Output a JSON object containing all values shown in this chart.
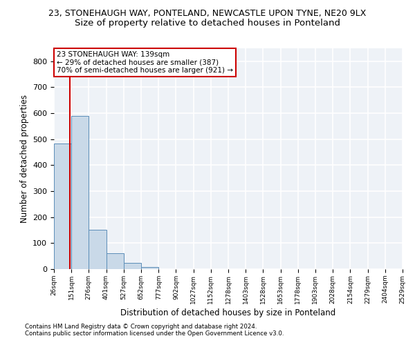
{
  "title1": "23, STONEHAUGH WAY, PONTELAND, NEWCASTLE UPON TYNE, NE20 9LX",
  "title2": "Size of property relative to detached houses in Ponteland",
  "xlabel": "Distribution of detached houses by size in Ponteland",
  "ylabel": "Number of detached properties",
  "bar_edges": [
    26,
    151,
    276,
    401,
    527,
    652,
    777,
    902,
    1027,
    1152,
    1278,
    1403,
    1528,
    1653,
    1778,
    1903,
    2028,
    2154,
    2279,
    2404,
    2529
  ],
  "bar_heights": [
    484,
    590,
    152,
    62,
    25,
    7,
    0,
    0,
    0,
    0,
    0,
    0,
    0,
    0,
    0,
    0,
    0,
    0,
    0,
    0
  ],
  "bar_color": "#c9d9e8",
  "bar_edge_color": "#5b8db8",
  "property_size": 139,
  "property_line_color": "#cc0000",
  "annotation_text": "23 STONEHAUGH WAY: 139sqm\n← 29% of detached houses are smaller (387)\n70% of semi-detached houses are larger (921) →",
  "annotation_box_color": "white",
  "annotation_box_edge_color": "#cc0000",
  "ylim": [
    0,
    850
  ],
  "yticks": [
    0,
    100,
    200,
    300,
    400,
    500,
    600,
    700,
    800
  ],
  "footnote1": "Contains HM Land Registry data © Crown copyright and database right 2024.",
  "footnote2": "Contains public sector information licensed under the Open Government Licence v3.0.",
  "bg_color": "#eef2f7",
  "grid_color": "#ffffff",
  "title1_fontsize": 9,
  "title2_fontsize": 9.5
}
